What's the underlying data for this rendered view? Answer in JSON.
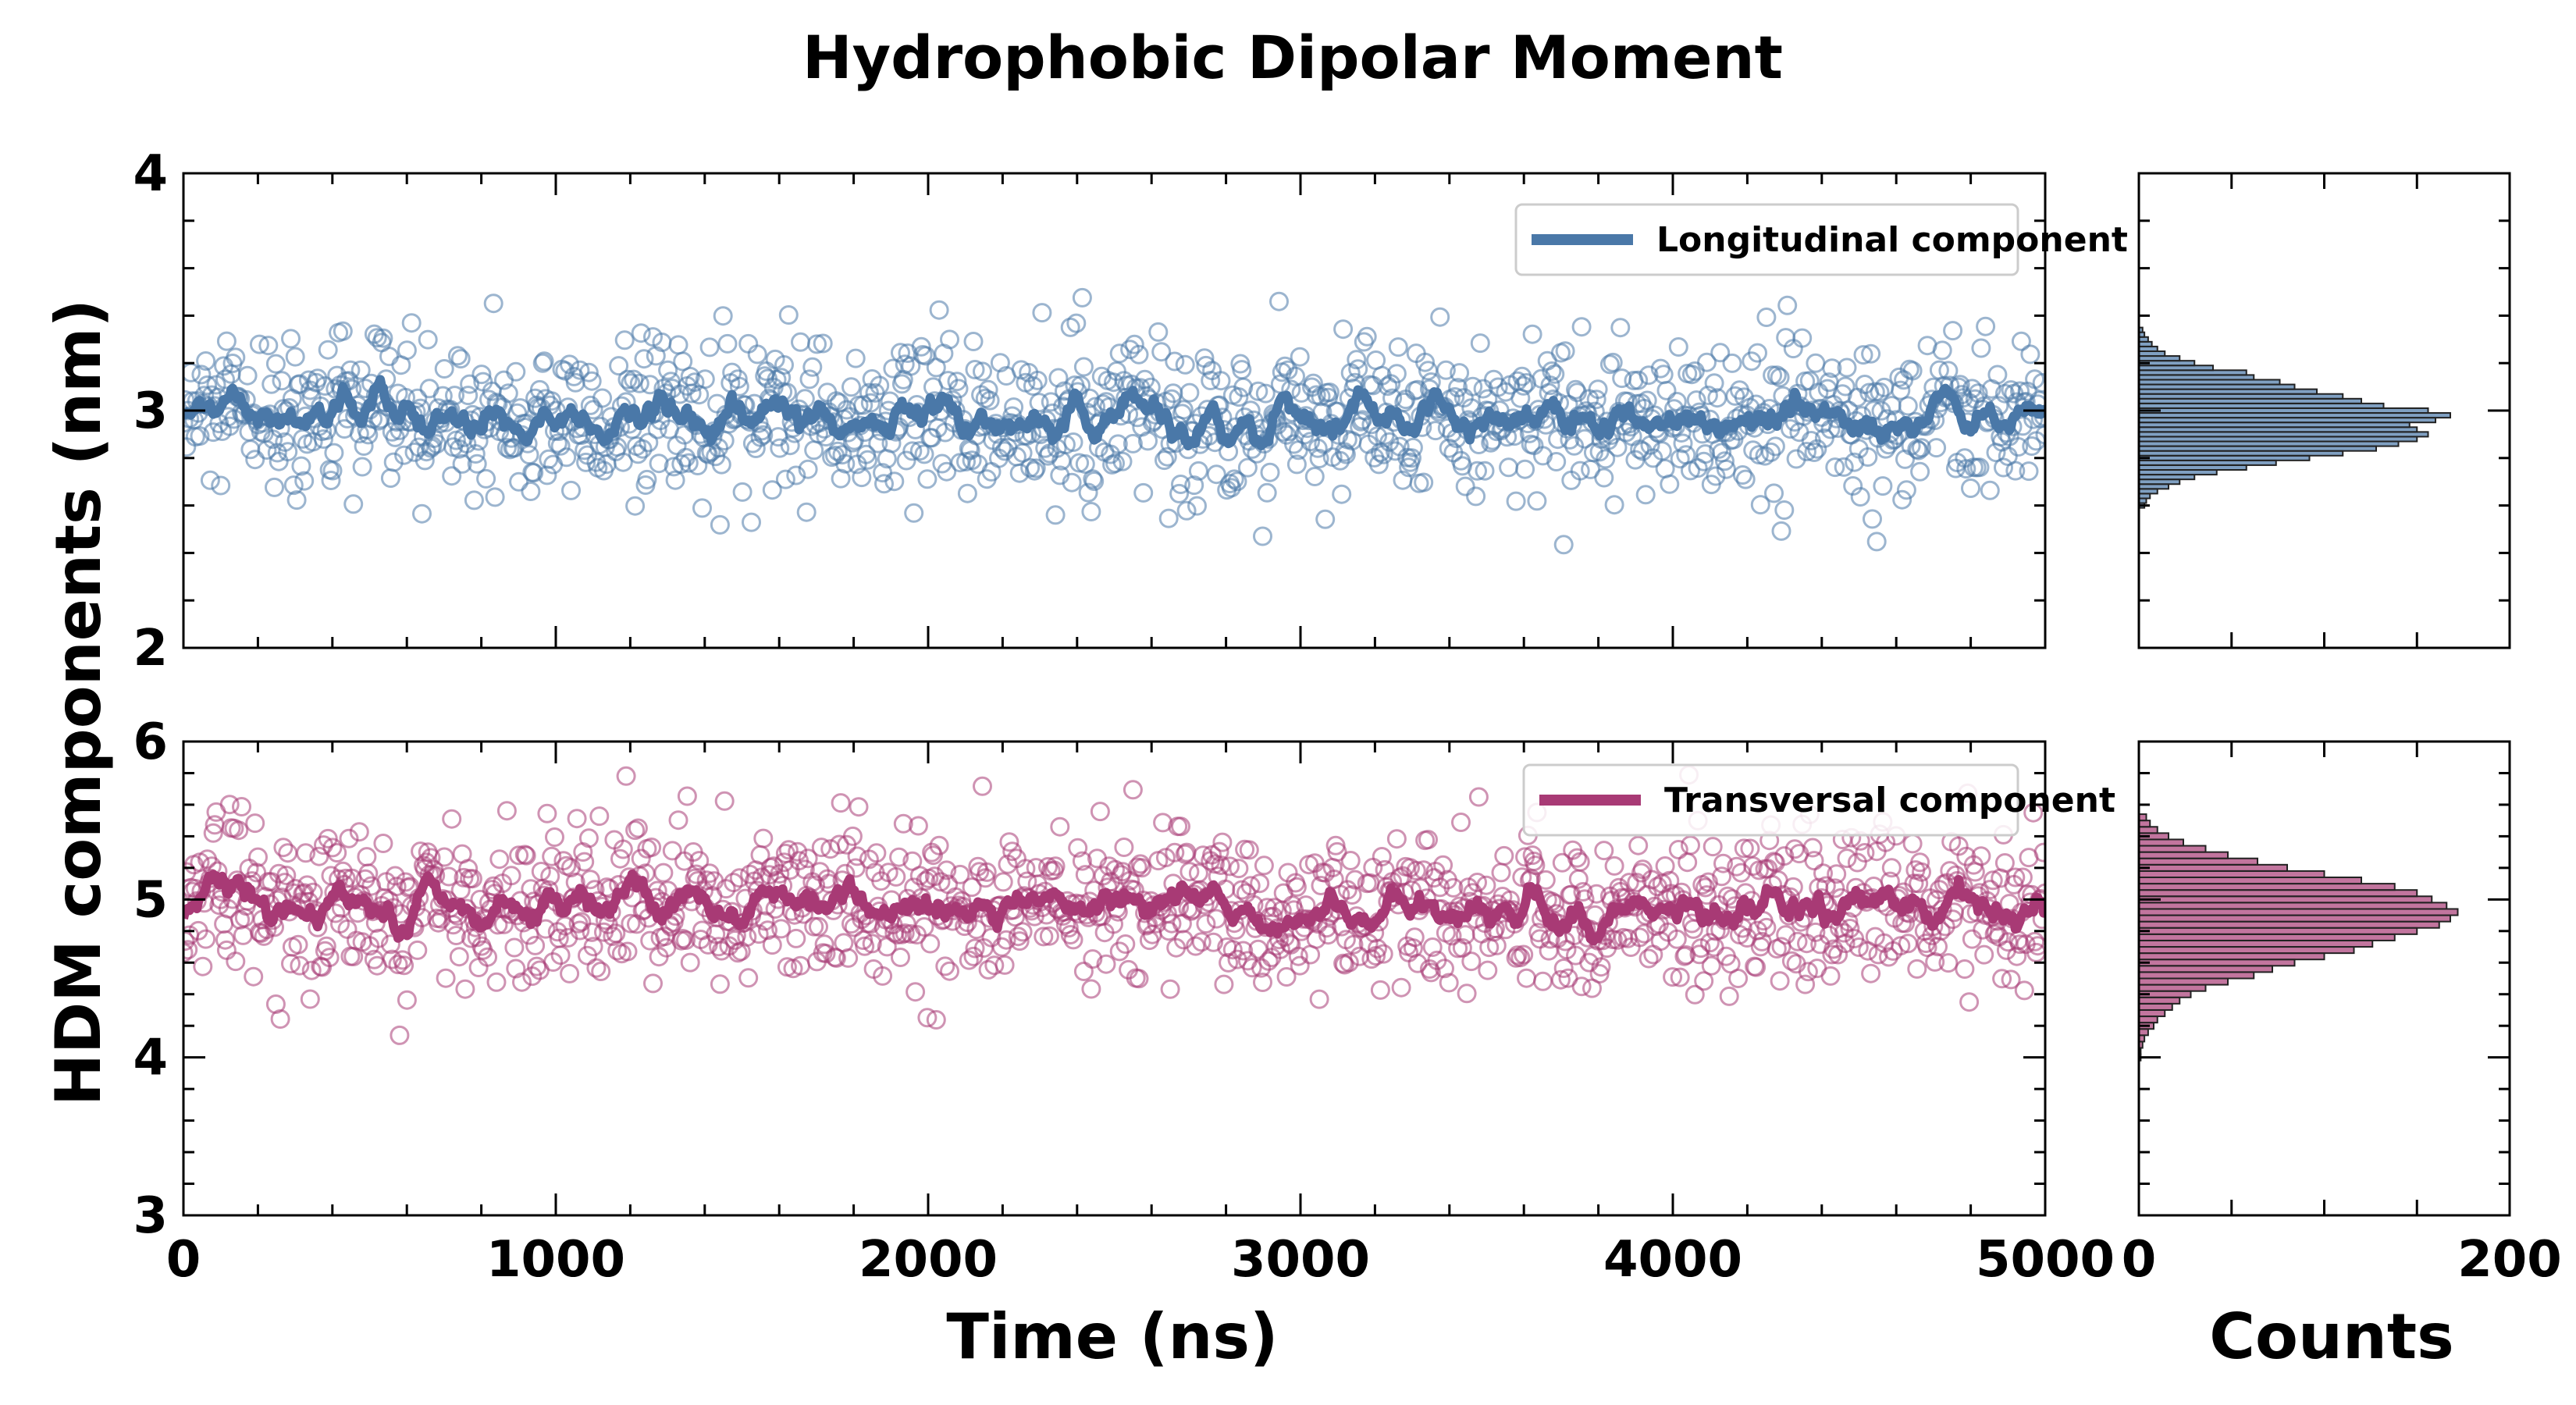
{
  "chart_data": {
    "title": "Hydrophobic Dipolar Moment",
    "ylabel": "HDM components (nm)",
    "xlabel": "Time (ns)",
    "hist_xlabel": "Counts",
    "type": "scatter",
    "x_range": [
      0,
      5000
    ],
    "x_ticks": [
      0,
      1000,
      2000,
      3000,
      4000,
      5000
    ],
    "hist_x_range": [
      0,
      200
    ],
    "hist_x_ticks": [
      0,
      200
    ],
    "panels": [
      {
        "id": "longitudinal",
        "legend": "Longitudinal component",
        "color": "#4a78a8",
        "ylim": [
          2,
          4
        ],
        "y_ticks": [
          2,
          3,
          4
        ],
        "mean": 2.96,
        "std": 0.17,
        "n_points": 1250,
        "series": [
          {
            "name": "samples",
            "type": "scatter",
            "marker": "open-circle",
            "mean": 2.96,
            "std": 0.17
          },
          {
            "name": "Longitudinal component",
            "type": "line",
            "smoothed": true
          }
        ],
        "histogram": {
          "orientation": "horizontal",
          "bin_centers": [
            2.6,
            2.62,
            2.64,
            2.66,
            2.68,
            2.7,
            2.72,
            2.74,
            2.76,
            2.78,
            2.8,
            2.82,
            2.84,
            2.86,
            2.88,
            2.9,
            2.92,
            2.94,
            2.96,
            2.98,
            3.0,
            3.02,
            3.04,
            3.06,
            3.08,
            3.1,
            3.12,
            3.14,
            3.16,
            3.18,
            3.2,
            3.22,
            3.24,
            3.26,
            3.28,
            3.3,
            3.32,
            3.34
          ],
          "counts": [
            3,
            4,
            6,
            10,
            16,
            22,
            30,
            42,
            58,
            74,
            92,
            110,
            128,
            140,
            150,
            156,
            150,
            146,
            160,
            168,
            156,
            132,
            120,
            110,
            96,
            84,
            76,
            62,
            58,
            40,
            30,
            22,
            14,
            10,
            7,
            5,
            3,
            2
          ]
        }
      },
      {
        "id": "transversal",
        "legend": "Transversal component",
        "color": "#a83a75",
        "ylim": [
          3,
          6
        ],
        "y_ticks": [
          3,
          4,
          5,
          6
        ],
        "mean": 4.95,
        "std": 0.25,
        "n_points": 1250,
        "series": [
          {
            "name": "samples",
            "type": "scatter",
            "marker": "open-circle",
            "mean": 4.95,
            "std": 0.25
          },
          {
            "name": "Transversal component",
            "type": "line",
            "smoothed": true
          }
        ],
        "histogram": {
          "orientation": "horizontal",
          "bin_centers": [
            4.0,
            4.04,
            4.08,
            4.12,
            4.16,
            4.2,
            4.24,
            4.28,
            4.32,
            4.36,
            4.4,
            4.44,
            4.48,
            4.52,
            4.56,
            4.6,
            4.64,
            4.68,
            4.72,
            4.76,
            4.8,
            4.84,
            4.88,
            4.92,
            4.96,
            5.0,
            5.04,
            5.08,
            5.12,
            5.16,
            5.2,
            5.24,
            5.28,
            5.32,
            5.36,
            5.4,
            5.44,
            5.48,
            5.52
          ],
          "counts": [
            1,
            1,
            2,
            3,
            5,
            8,
            10,
            14,
            18,
            22,
            28,
            36,
            48,
            62,
            72,
            84,
            100,
            116,
            126,
            138,
            150,
            162,
            168,
            172,
            166,
            158,
            150,
            138,
            120,
            100,
            80,
            64,
            48,
            36,
            24,
            16,
            10,
            6,
            4
          ]
        }
      }
    ]
  }
}
